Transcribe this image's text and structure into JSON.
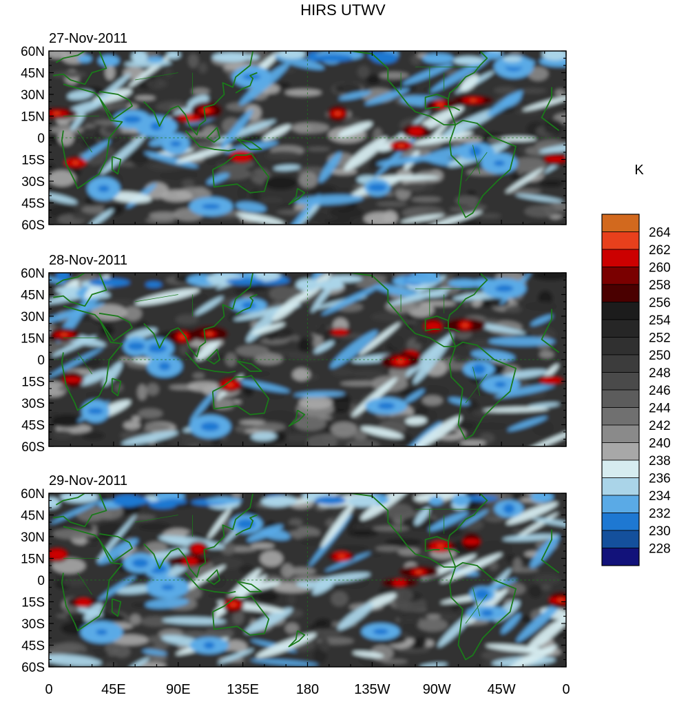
{
  "title": "HIRS UTWV",
  "units_label": "K",
  "panels": [
    {
      "date": "27-Nov-2011"
    },
    {
      "date": "28-Nov-2011"
    },
    {
      "date": "29-Nov-2011"
    }
  ],
  "lat_labels": [
    "60N",
    "45N",
    "30N",
    "15N",
    "0",
    "15S",
    "30S",
    "45S",
    "60S"
  ],
  "lon_labels": [
    "0",
    "45E",
    "90E",
    "135E",
    "180",
    "135W",
    "90W",
    "45W",
    "0"
  ],
  "colorbar": {
    "levels": [
      "264",
      "262",
      "260",
      "258",
      "256",
      "254",
      "252",
      "250",
      "248",
      "246",
      "244",
      "242",
      "240",
      "238",
      "236",
      "234",
      "232",
      "230",
      "228"
    ],
    "colors": [
      "#d2691e",
      "#e8401c",
      "#cc0000",
      "#7a0000",
      "#4a0000",
      "#1c1c1c",
      "#262626",
      "#303030",
      "#3c3c3c",
      "#4a4a4a",
      "#5c5c5c",
      "#707070",
      "#8a8a8a",
      "#a8a8a8",
      "#d6ecf0",
      "#aad4e8",
      "#5aaae6",
      "#1e78d2",
      "#14509c",
      "#12127a"
    ]
  },
  "coastline_color": "#1a7a1a"
}
